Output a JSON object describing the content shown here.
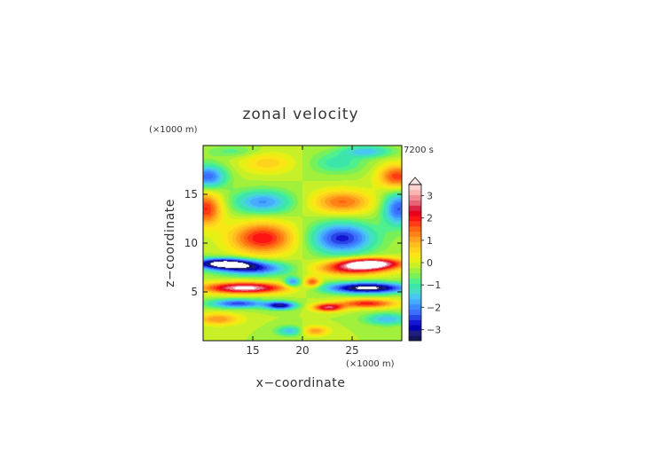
{
  "chart_data": {
    "type": "heatmap",
    "title": "zonal velocity",
    "xlabel": "x−coordinate",
    "ylabel": "z−coordinate",
    "x_units": "(×1000 m)",
    "y_units": "(×1000 m)",
    "time_label": "7200 s",
    "xlim": [
      10,
      30
    ],
    "ylim": [
      0,
      20
    ],
    "x_ticks": [
      15,
      20,
      25
    ],
    "y_ticks": [
      5,
      10,
      15
    ],
    "colorbar": {
      "min": -3.5,
      "max": 3.5,
      "step": 0.25,
      "extend": "max",
      "tick_values": [
        3,
        2,
        1,
        0,
        -1,
        -2,
        -3
      ],
      "tick_labels": [
        "3",
        "2",
        "1",
        "0",
        "−1",
        "−2",
        "−3"
      ],
      "colors": [
        "#14145a",
        "#1e1e82",
        "#0000b4",
        "#1414d2",
        "#2846e6",
        "#3c6eff",
        "#3c8cff",
        "#46aaff",
        "#46c8f0",
        "#46dcc8",
        "#3ce6aa",
        "#50f08c",
        "#78f05a",
        "#a0f03c",
        "#c8f028",
        "#e6f014",
        "#fae614",
        "#ffd21e",
        "#ffbe1e",
        "#ffa01e",
        "#ff8214",
        "#ff6414",
        "#ff3c14",
        "#ff1414",
        "#e6001e",
        "#dc2846",
        "#e66478",
        "#f08c96",
        "#fab4b4",
        "#ffd2d2"
      ]
    },
    "features": [
      {
        "x": 16.0,
        "z": 10.5,
        "value": 2.5,
        "rx": 3.2,
        "rz": 1.6
      },
      {
        "x": 24.0,
        "z": 10.5,
        "value": -2.6,
        "rx": 3.2,
        "rz": 1.6
      },
      {
        "x": 10.3,
        "z": 13.5,
        "value": 2.3,
        "rx": 1.6,
        "rz": 1.7
      },
      {
        "x": 29.7,
        "z": 13.5,
        "value": -2.3,
        "rx": 1.6,
        "rz": 1.7
      },
      {
        "x": 16.0,
        "z": 14.2,
        "value": -1.8,
        "rx": 3.0,
        "rz": 1.2
      },
      {
        "x": 24.0,
        "z": 14.2,
        "value": 1.8,
        "rx": 3.0,
        "rz": 1.2
      },
      {
        "x": 16.5,
        "z": 18.2,
        "value": 0.9,
        "rx": 2.8,
        "rz": 1.1
      },
      {
        "x": 23.5,
        "z": 18.2,
        "value": -0.9,
        "rx": 2.8,
        "rz": 1.1
      },
      {
        "x": 10.5,
        "z": 16.8,
        "value": -2.2,
        "rx": 1.8,
        "rz": 1.2
      },
      {
        "x": 29.5,
        "z": 16.8,
        "value": 2.2,
        "rx": 1.8,
        "rz": 1.2
      },
      {
        "x": 12.0,
        "z": 7.9,
        "value": -3.8,
        "rx": 3.0,
        "rz": 0.55
      },
      {
        "x": 15.0,
        "z": 7.4,
        "value": -2.5,
        "rx": 3.5,
        "rz": 0.7
      },
      {
        "x": 27.0,
        "z": 7.9,
        "value": 3.8,
        "rx": 3.0,
        "rz": 0.55
      },
      {
        "x": 25.0,
        "z": 7.4,
        "value": 2.5,
        "rx": 3.5,
        "rz": 0.7
      },
      {
        "x": 14.2,
        "z": 5.4,
        "value": 3.8,
        "rx": 4.0,
        "rz": 0.55
      },
      {
        "x": 26.5,
        "z": 5.4,
        "value": -3.8,
        "rx": 4.0,
        "rz": 0.55
      },
      {
        "x": 13.5,
        "z": 3.8,
        "value": -2.4,
        "rx": 2.8,
        "rz": 0.45
      },
      {
        "x": 26.5,
        "z": 3.8,
        "value": 2.4,
        "rx": 2.8,
        "rz": 0.45
      },
      {
        "x": 17.8,
        "z": 3.6,
        "value": -3.0,
        "rx": 1.5,
        "rz": 0.4
      },
      {
        "x": 22.6,
        "z": 3.4,
        "value": 3.0,
        "rx": 1.5,
        "rz": 0.4
      },
      {
        "x": 11.5,
        "z": 2.2,
        "value": 1.5,
        "rx": 2.2,
        "rz": 0.6
      },
      {
        "x": 28.5,
        "z": 2.2,
        "value": -1.5,
        "rx": 2.2,
        "rz": 0.6
      },
      {
        "x": 19.0,
        "z": 6.0,
        "value": -2.0,
        "rx": 0.8,
        "rz": 0.5
      },
      {
        "x": 21.0,
        "z": 6.0,
        "value": 2.0,
        "rx": 0.8,
        "rz": 0.5
      },
      {
        "x": 18.8,
        "z": 1.0,
        "value": -1.5,
        "rx": 1.4,
        "rz": 0.5
      },
      {
        "x": 21.2,
        "z": 1.0,
        "value": 1.5,
        "rx": 1.4,
        "rz": 0.5
      },
      {
        "x": 13.0,
        "z": 19.4,
        "value": -0.6,
        "rx": 2.5,
        "rz": 0.6
      },
      {
        "x": 26.5,
        "z": 19.4,
        "value": -1.4,
        "rx": 2.5,
        "rz": 0.6
      }
    ]
  }
}
